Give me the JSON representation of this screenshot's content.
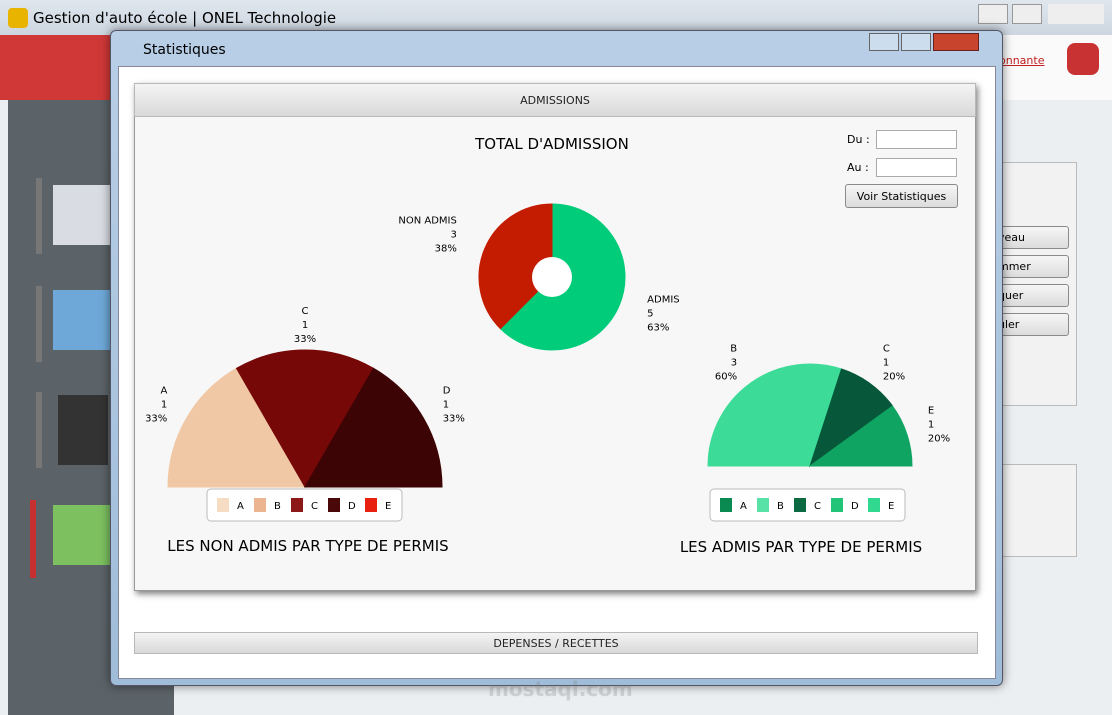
{
  "app_title": "Gestion d'auto école | ONEL Technologie",
  "window_title": "Statistiques",
  "background": {
    "link": "onnante",
    "buttons": [
      "veau",
      "mmer",
      "quer",
      "uler"
    ],
    "watermark": "mostaql.com"
  },
  "admissions": {
    "header": "ADMISSIONS",
    "du_label": "Du :",
    "au_label": "Au :",
    "button": "Voir Statistiques"
  },
  "depenses": {
    "header": "DEPENSES / RECETTES"
  },
  "chart_data": [
    {
      "type": "donut",
      "title": "TOTAL D'ADMISSION",
      "categories": [
        "ADMIS",
        "NON ADMIS"
      ],
      "values": [
        5,
        3
      ],
      "percent_labels": [
        "63%",
        "38%"
      ],
      "colors": [
        "#00cc7a",
        "#c41c00"
      ]
    },
    {
      "type": "half-pie",
      "title": "LES NON ADMIS PAR TYPE DE PERMIS",
      "categories": [
        "A",
        "C",
        "D"
      ],
      "values": [
        1,
        1,
        1
      ],
      "percent_labels": [
        "33%",
        "33%",
        "33%"
      ],
      "colors": [
        "#f0c8a6",
        "#760808",
        "#3c0404"
      ],
      "legend": [
        {
          "name": "A",
          "color": "#f7dcc4"
        },
        {
          "name": "B",
          "color": "#eab590"
        },
        {
          "name": "C",
          "color": "#8c1818"
        },
        {
          "name": "D",
          "color": "#4a0808"
        },
        {
          "name": "E",
          "color": "#e82010"
        }
      ]
    },
    {
      "type": "half-pie",
      "title": "LES ADMIS PAR TYPE DE PERMIS",
      "categories": [
        "B",
        "C",
        "E"
      ],
      "values": [
        3,
        1,
        1
      ],
      "percent_labels": [
        "60%",
        "20%",
        "20%"
      ],
      "colors": [
        "#3cdc98",
        "#07583a",
        "#10a462"
      ],
      "legend": [
        {
          "name": "A",
          "color": "#0a8a50"
        },
        {
          "name": "B",
          "color": "#58e2a8"
        },
        {
          "name": "C",
          "color": "#0b6a42"
        },
        {
          "name": "D",
          "color": "#22c478"
        },
        {
          "name": "E",
          "color": "#30d890"
        }
      ]
    }
  ]
}
